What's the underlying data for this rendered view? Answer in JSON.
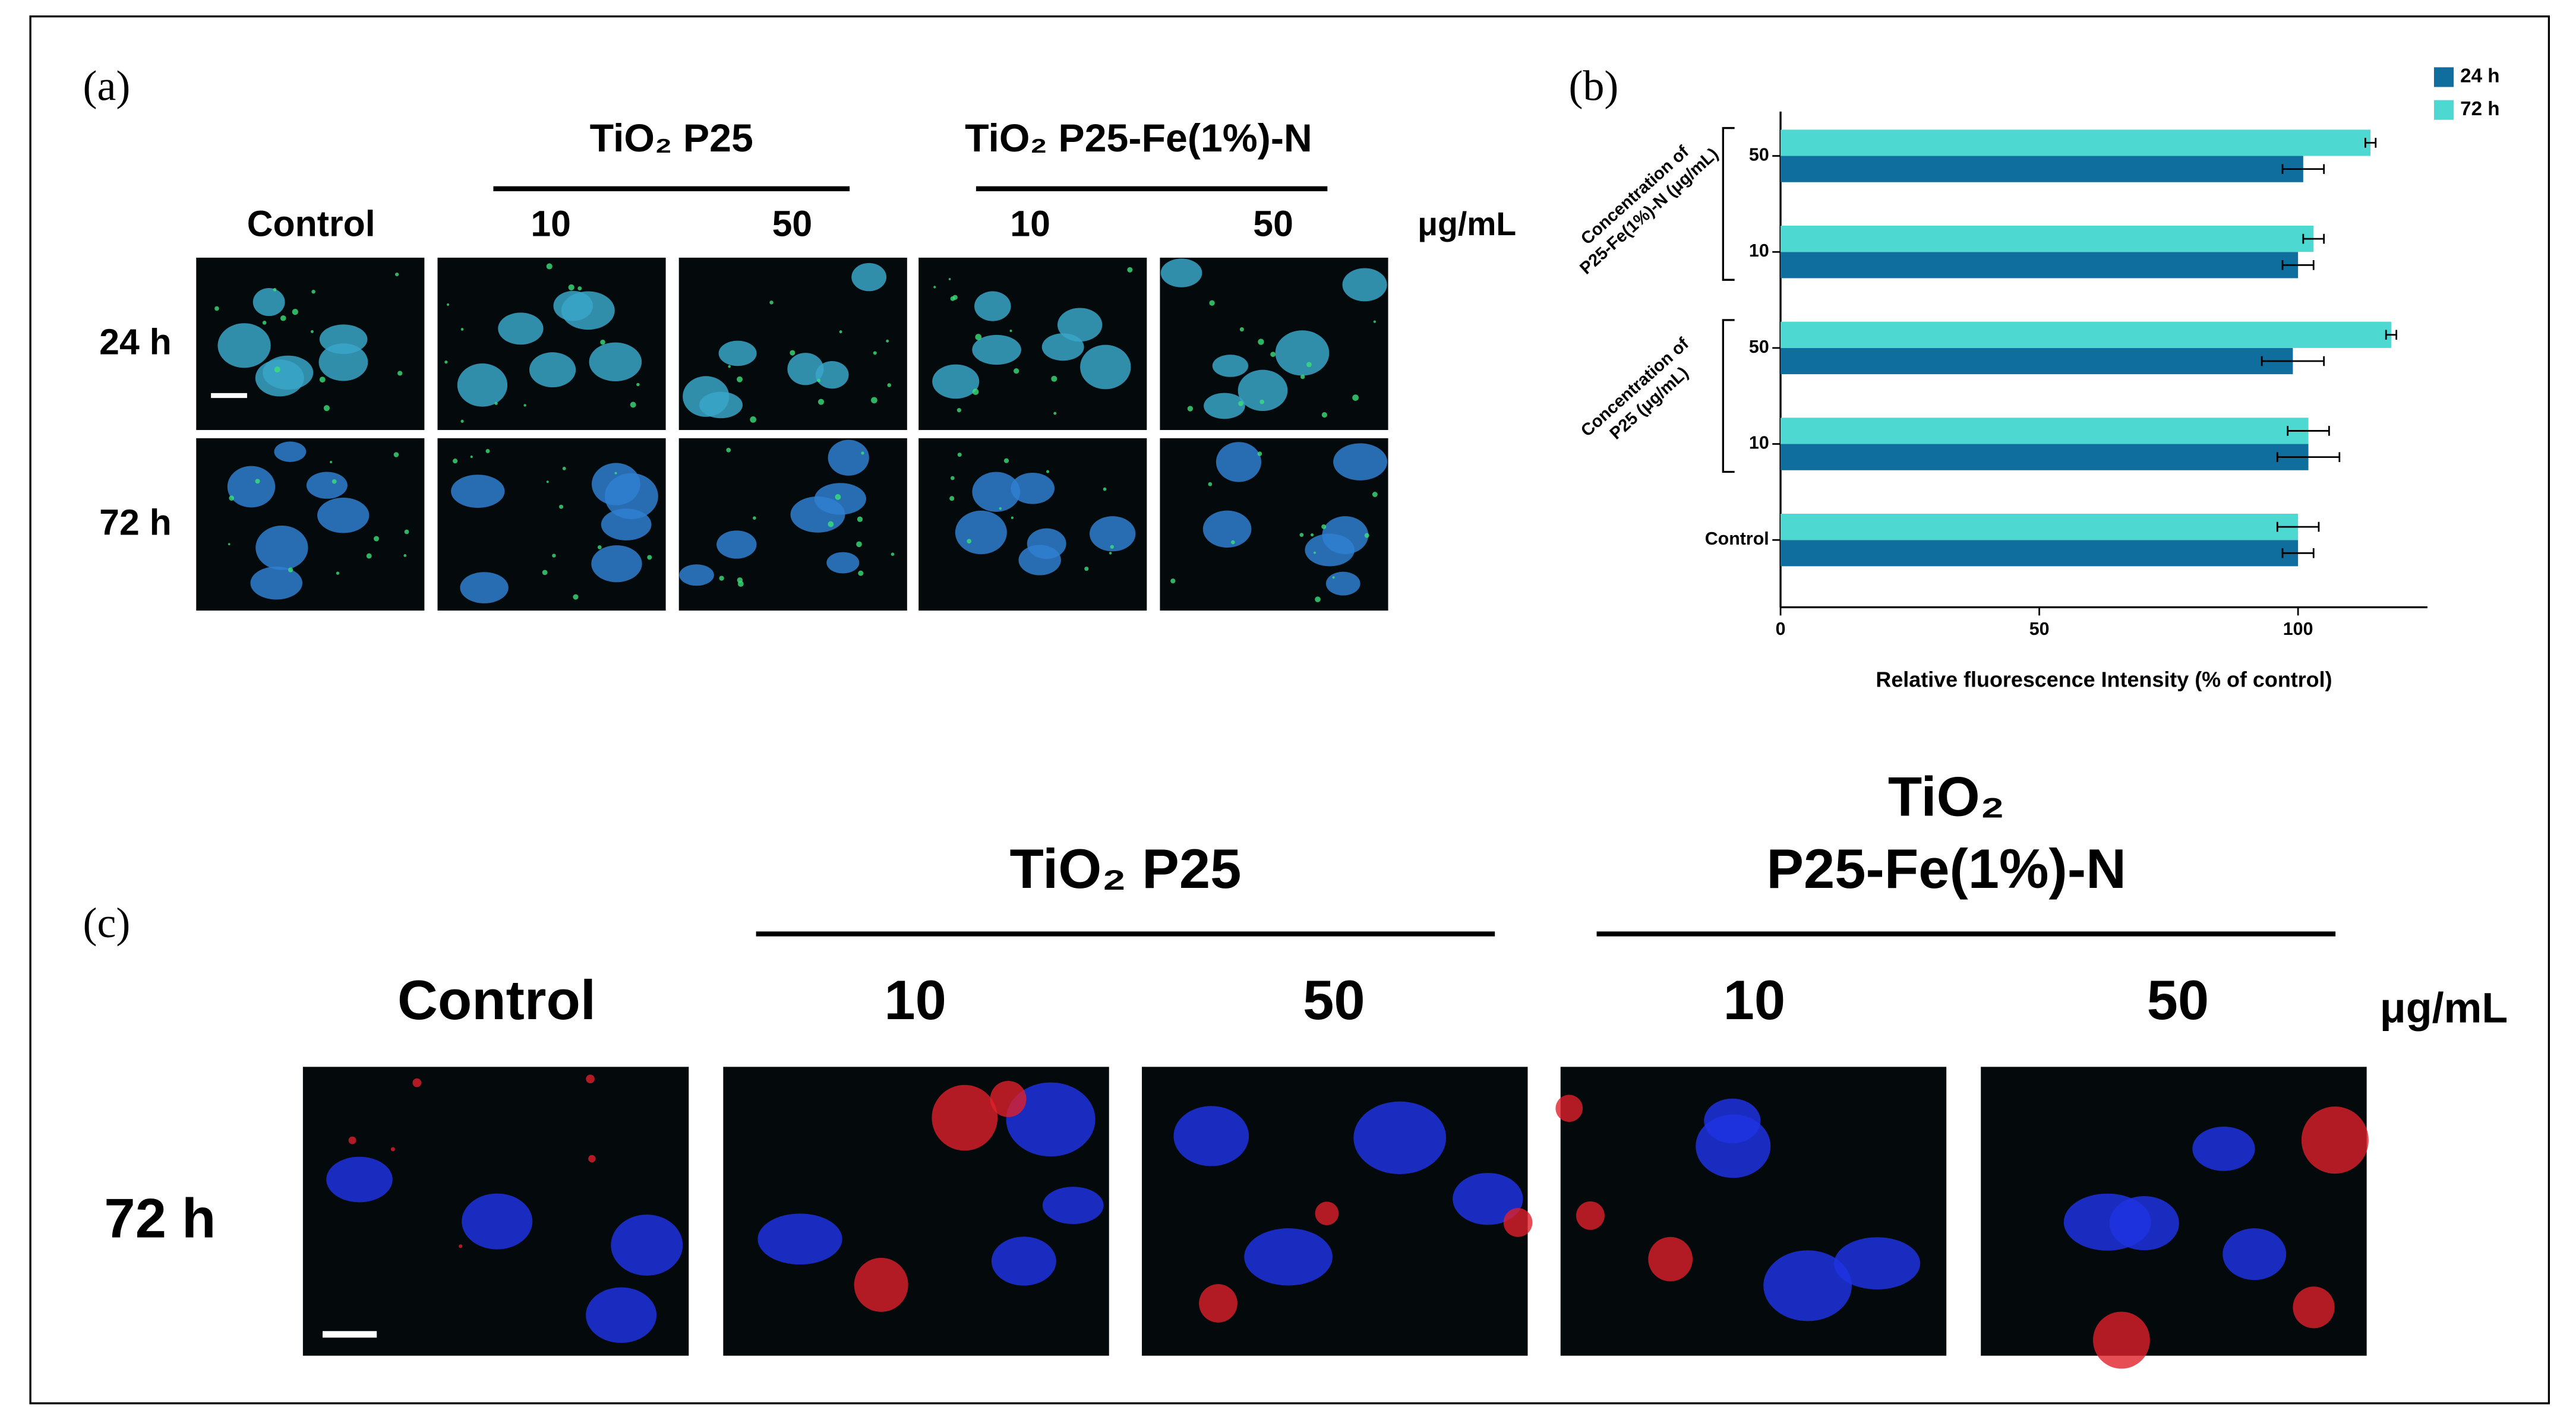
{
  "panel_a": {
    "label": "(a)",
    "groups": [
      "TiO₂ P25",
      "TiO₂ P25-Fe(1%)-N"
    ],
    "columns": [
      "Control",
      "10",
      "50",
      "10",
      "50"
    ],
    "unit": "μg/mL",
    "rows": [
      "24 h",
      "72 h"
    ]
  },
  "panel_b": {
    "label": "(b)"
  },
  "panel_c": {
    "label": "(c)",
    "groups": [
      [
        "TiO₂ P25"
      ],
      [
        "TiO₂",
        "P25-Fe(1%)-N"
      ]
    ],
    "columns": [
      "Control",
      "10",
      "50",
      "10",
      "50"
    ],
    "unit": "μg/mL",
    "rows": [
      "72 h"
    ]
  },
  "chart_data": {
    "type": "hbar",
    "categories": [
      "Control",
      "10",
      "50",
      "10",
      "50"
    ],
    "group_labels": [
      [
        "Concentration of",
        "P25 (μg/mL)"
      ],
      [
        "Concentration of",
        "P25-Fe(1%)-N (μg/mL)"
      ]
    ],
    "series": [
      {
        "name": "24 h",
        "color": "#0f6e9e",
        "values": [
          100,
          102,
          99,
          100,
          101
        ],
        "errors": [
          3,
          6,
          6,
          3,
          4
        ]
      },
      {
        "name": "72 h",
        "color": "#4dd9d2",
        "values": [
          100,
          102,
          118,
          103,
          114
        ],
        "errors": [
          4,
          4,
          1,
          2,
          1
        ]
      }
    ],
    "xlabel": "Relative fluorescence Intensity (% of control)",
    "xlim": [
      0,
      125
    ],
    "xticks": [
      0,
      50,
      100
    ],
    "legend": "top-right"
  }
}
